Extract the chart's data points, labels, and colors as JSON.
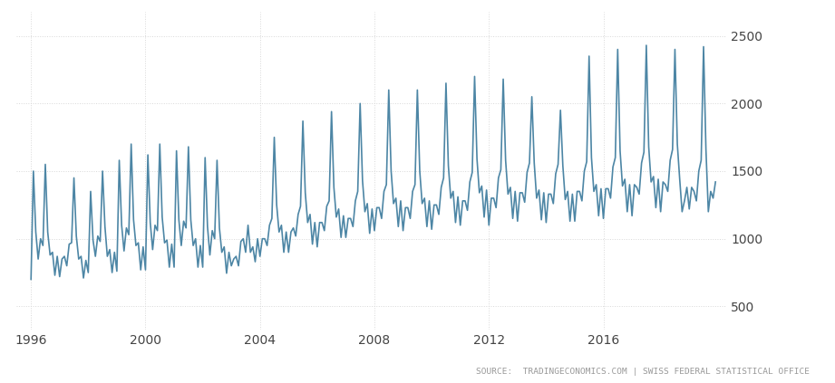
{
  "source_text": "SOURCE:  TRADINGECONOMICS.COM | SWISS FEDERAL STATISTICAL OFFICE",
  "line_color": "#4d86a5",
  "bg_color": "#ffffff",
  "grid_color": "#d8d8d8",
  "axis_color": "#444444",
  "source_color": "#999999",
  "xlim_start": 1995.5,
  "xlim_end": 2020.3,
  "ylim_bottom": 330,
  "ylim_top": 2680,
  "yticks": [
    500,
    1000,
    1500,
    2000,
    2500
  ],
  "xticks": [
    1996,
    2000,
    2004,
    2008,
    2012,
    2016
  ],
  "start_year": 1996,
  "end_year": 2019,
  "line_width": 1.2,
  "monthly_data": [
    700,
    1500,
    1050,
    850,
    1000,
    950,
    1550,
    1050,
    880,
    900,
    730,
    870,
    720,
    850,
    870,
    800,
    960,
    970,
    1450,
    1020,
    850,
    870,
    710,
    840,
    750,
    1350,
    990,
    870,
    1020,
    980,
    1500,
    1090,
    870,
    920,
    750,
    900,
    760,
    1580,
    1100,
    910,
    1080,
    1030,
    1700,
    1140,
    950,
    970,
    770,
    940,
    770,
    1620,
    1120,
    920,
    1100,
    1060,
    1700,
    1160,
    970,
    990,
    790,
    960,
    790,
    1650,
    1140,
    950,
    1130,
    1080,
    1680,
    1140,
    950,
    1000,
    790,
    950,
    790,
    1600,
    1090,
    880,
    1060,
    1000,
    1580,
    1080,
    900,
    940,
    745,
    900,
    800,
    850,
    870,
    800,
    980,
    1000,
    900,
    1100,
    900,
    940,
    830,
    1000,
    870,
    1000,
    1000,
    950,
    1100,
    1150,
    1750,
    1250,
    1050,
    1100,
    900,
    1050,
    900,
    1050,
    1080,
    1020,
    1180,
    1240,
    1870,
    1340,
    1120,
    1180,
    960,
    1120,
    940,
    1120,
    1120,
    1060,
    1240,
    1280,
    1940,
    1380,
    1160,
    1220,
    1010,
    1170,
    1010,
    1150,
    1150,
    1090,
    1280,
    1350,
    2000,
    1430,
    1200,
    1260,
    1040,
    1220,
    1060,
    1230,
    1230,
    1150,
    1350,
    1400,
    2100,
    1500,
    1260,
    1300,
    1090,
    1280,
    1060,
    1230,
    1230,
    1150,
    1350,
    1400,
    2100,
    1500,
    1260,
    1300,
    1090,
    1280,
    1070,
    1250,
    1250,
    1180,
    1380,
    1450,
    2150,
    1540,
    1300,
    1350,
    1120,
    1310,
    1100,
    1280,
    1280,
    1210,
    1420,
    1490,
    2200,
    1590,
    1340,
    1390,
    1160,
    1360,
    1100,
    1300,
    1300,
    1230,
    1450,
    1510,
    2180,
    1580,
    1330,
    1380,
    1150,
    1350,
    1130,
    1340,
    1340,
    1270,
    1490,
    1560,
    2050,
    1560,
    1300,
    1360,
    1140,
    1340,
    1120,
    1330,
    1330,
    1260,
    1480,
    1550,
    1950,
    1540,
    1290,
    1350,
    1130,
    1330,
    1130,
    1350,
    1350,
    1280,
    1500,
    1570,
    2350,
    1600,
    1350,
    1400,
    1170,
    1370,
    1150,
    1370,
    1370,
    1300,
    1530,
    1600,
    2400,
    1650,
    1390,
    1440,
    1200,
    1400,
    1170,
    1400,
    1380,
    1330,
    1560,
    1640,
    2430,
    1680,
    1420,
    1460,
    1230,
    1440,
    1200,
    1420,
    1400,
    1350,
    1580,
    1660,
    2400,
    1700,
    1440,
    1200,
    1280,
    1380,
    1220,
    1380,
    1350,
    1280,
    1500,
    1580,
    2420,
    1660,
    1200,
    1350,
    1300,
    1420
  ]
}
